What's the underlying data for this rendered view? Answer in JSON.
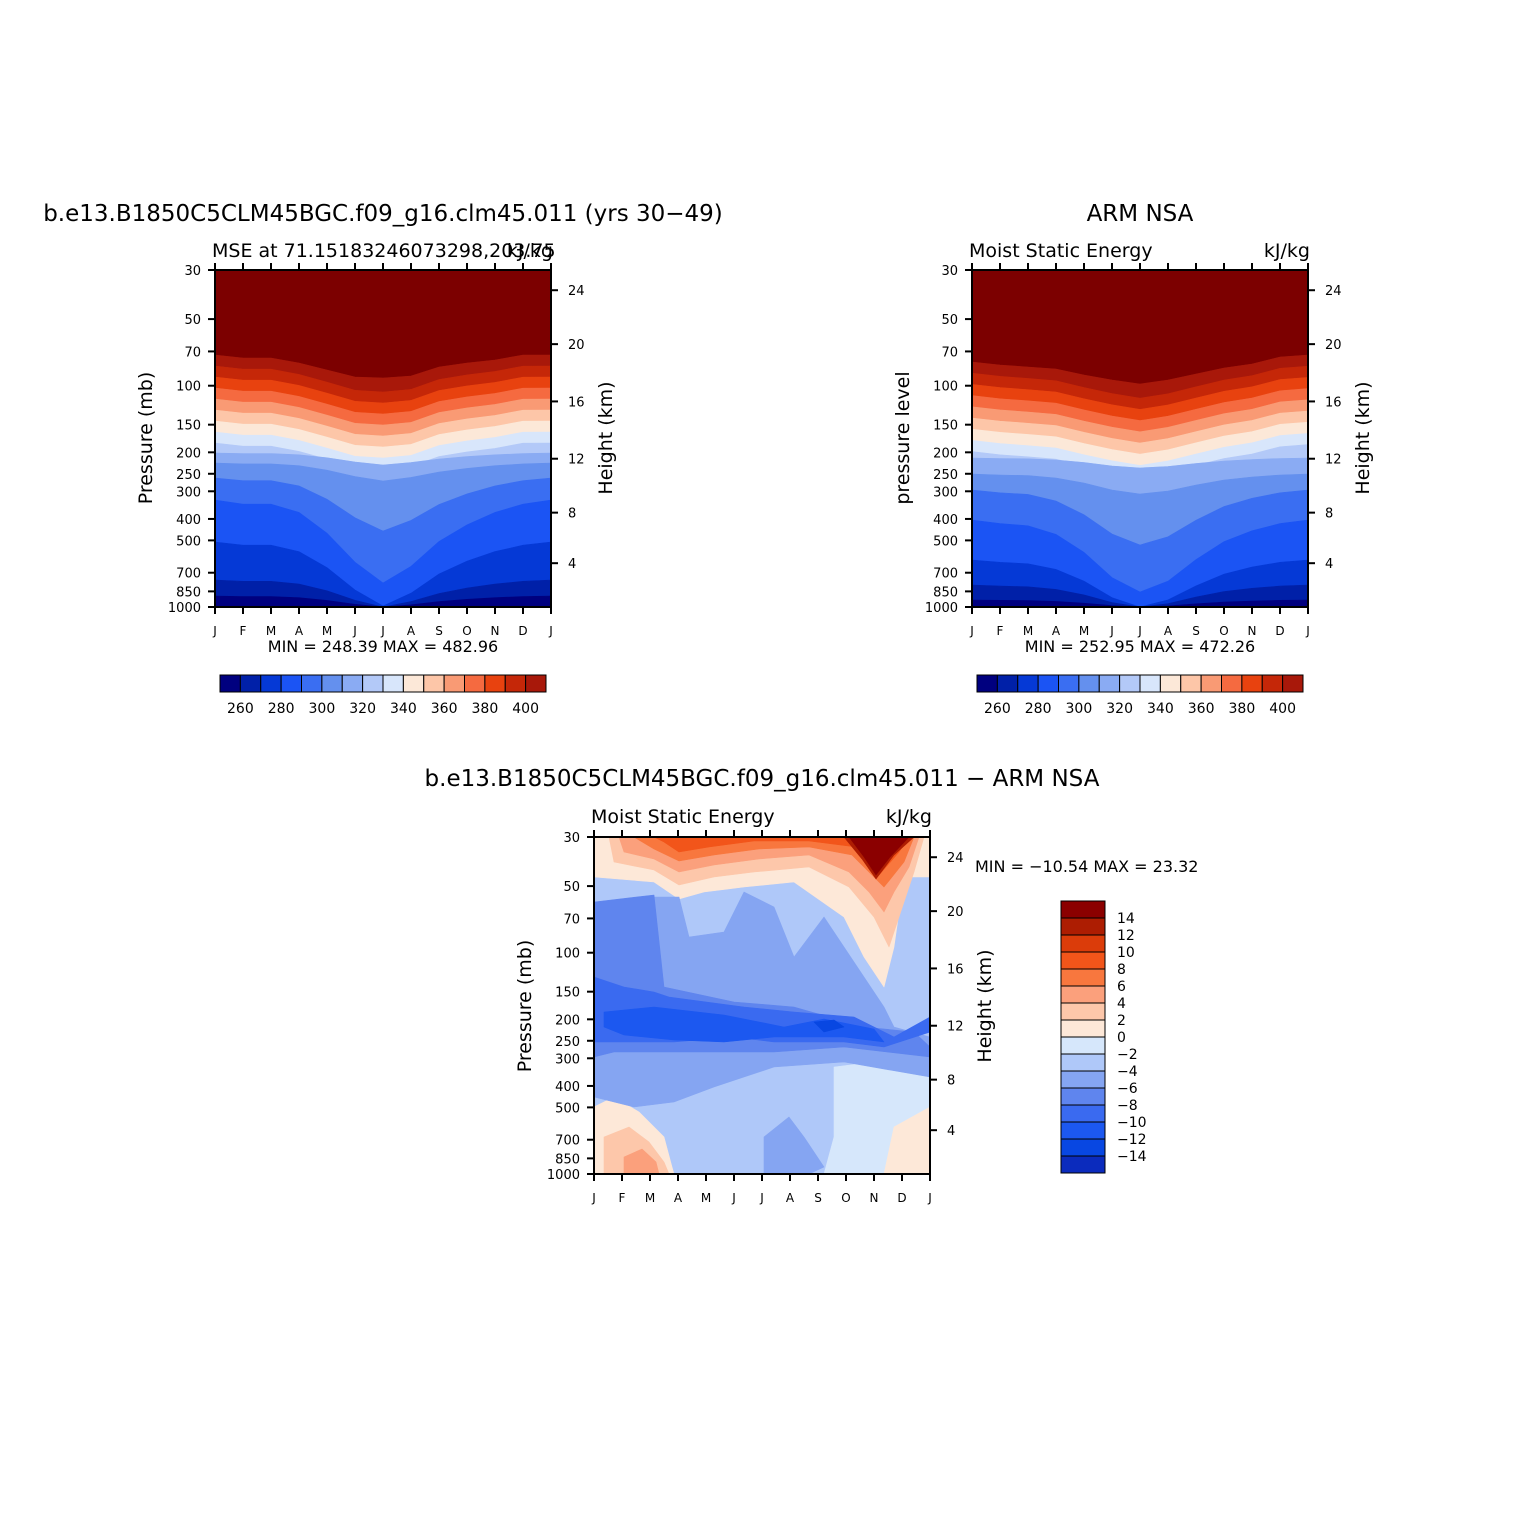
{
  "colors": {
    "levels15": [
      "#00007f",
      "#0020a8",
      "#0539d6",
      "#1b54f4",
      "#3a6ef2",
      "#6490ee",
      "#8aabf3",
      "#b3c9f8",
      "#d8e6fb",
      "#fce8d8",
      "#fdc6a8",
      "#f99a74",
      "#f56a40",
      "#e8420f",
      "#c52708",
      "#a8180a",
      "#7c0000"
    ],
    "neg": [
      "#03008a",
      "#0b2bbd",
      "#0847e2",
      "#1c58f0",
      "#3a6af0",
      "#5f85ee",
      "#85a5f2",
      "#afc8f9",
      "#d6e7fb"
    ],
    "pos": [
      "#fde8d8",
      "#fdc7aa",
      "#fba07c",
      "#f8773e",
      "#f2551a",
      "#db3c0a",
      "#ad1d02",
      "#8b0000"
    ]
  },
  "charts": {
    "model": {
      "title": "b.e13.B1850C5CLM45BGC.f09_g16.clm45.011 (yrs 30−49)",
      "left": "MSE at 71.15183246073298,203.75",
      "right": "kJ/kg",
      "ylabel": "Pressure (mb)",
      "ylabel2": "Height (km)",
      "stats": "MIN = 248.39  MAX = 482.96"
    },
    "obs": {
      "title": "ARM NSA",
      "left": "Moist Static Energy",
      "right": "kJ/kg",
      "ylabel": "pressure level",
      "ylabel2": "Height (km)",
      "stats": "MIN = 252.95  MAX = 472.26"
    },
    "diff": {
      "title": "b.e13.B1850C5CLM45BGC.f09_g16.clm45.011 − ARM NSA",
      "left": "Moist Static Energy",
      "right": "kJ/kg",
      "ylabel": "Pressure (mb)",
      "ylabel2": "Height (km)",
      "stats": "MIN = −10.54  MAX =   23.32"
    }
  },
  "axes": {
    "months": [
      "J",
      "F",
      "M",
      "A",
      "M",
      "J",
      "J",
      "A",
      "S",
      "O",
      "N",
      "D",
      "J"
    ],
    "pressure_ticks": [
      "30",
      "50",
      "70",
      "100",
      "150",
      "200",
      "250",
      "300",
      "400",
      "500",
      "700",
      "850",
      "1000"
    ],
    "height_ticks": [
      "24",
      "20",
      "16",
      "12",
      "8",
      "4"
    ],
    "colorbar_labels": [
      "260",
      "280",
      "300",
      "320",
      "340",
      "360",
      "380",
      "400"
    ],
    "diff_colorbar_labels": [
      "14",
      "12",
      "10",
      "8",
      "6",
      "4",
      "2",
      "0",
      "−2",
      "−4",
      "−6",
      "−8",
      "−10",
      "−12",
      "−14"
    ]
  },
  "chart_data": [
    {
      "type": "heatmap",
      "title": "b.e13.B1850C5CLM45BGC.f09_g16.clm45.011 (yrs 30−49)",
      "x": [
        "J",
        "F",
        "M",
        "A",
        "M",
        "J",
        "J",
        "A",
        "S",
        "O",
        "N",
        "D",
        "J"
      ],
      "y_pressure_mb": [
        1000,
        850,
        700,
        500,
        400,
        300,
        250,
        200,
        150,
        100,
        70,
        50,
        30
      ],
      "contour_levels": [
        260,
        270,
        280,
        290,
        300,
        310,
        320,
        330,
        340,
        350,
        360,
        370,
        380,
        390,
        400
      ],
      "y_log": true,
      "min": 248.39,
      "max": 482.96,
      "units": "kJ/kg"
    },
    {
      "type": "heatmap",
      "title": "ARM NSA",
      "x": [
        "J",
        "F",
        "M",
        "A",
        "M",
        "J",
        "J",
        "A",
        "S",
        "O",
        "N",
        "D",
        "J"
      ],
      "y_pressure_mb": [
        1000,
        850,
        700,
        500,
        400,
        300,
        250,
        200,
        150,
        100,
        70,
        50,
        30
      ],
      "contour_levels": [
        260,
        270,
        280,
        290,
        300,
        310,
        320,
        330,
        340,
        350,
        360,
        370,
        380,
        390,
        400
      ],
      "y_log": true,
      "min": 252.95,
      "max": 472.26,
      "units": "kJ/kg"
    },
    {
      "type": "heatmap",
      "title": "b.e13.B1850C5CLM45BGC.f09_g16.clm45.011 − ARM NSA",
      "x": [
        "J",
        "F",
        "M",
        "A",
        "M",
        "J",
        "J",
        "A",
        "S",
        "O",
        "N",
        "D",
        "J"
      ],
      "y_pressure_mb": [
        1000,
        850,
        700,
        500,
        400,
        300,
        250,
        200,
        150,
        100,
        70,
        50,
        30
      ],
      "contour_levels": [
        -14,
        -12,
        -10,
        -8,
        -6,
        -4,
        -2,
        0,
        2,
        4,
        6,
        8,
        10,
        12,
        14
      ],
      "y_log": true,
      "min": -10.54,
      "max": 23.32,
      "units": "kJ/kg"
    }
  ]
}
